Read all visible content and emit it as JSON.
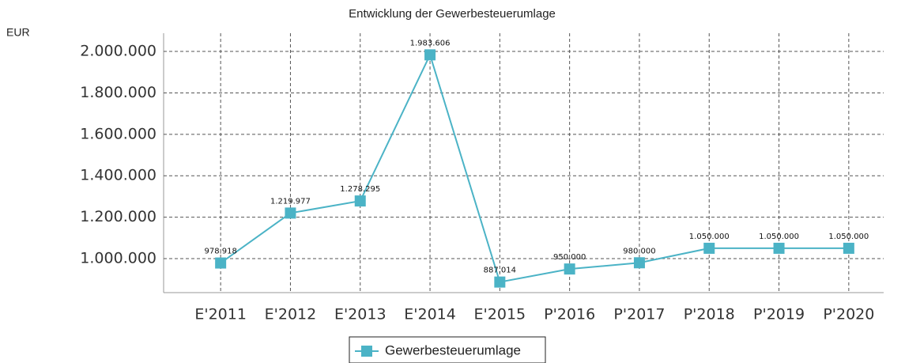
{
  "chart_data": {
    "type": "line",
    "title": "Entwicklung der Gewerbesteuerumlage",
    "y_label": "EUR",
    "categories": [
      "E'2011",
      "E'2012",
      "E'2013",
      "E'2014",
      "E'2015",
      "P'2016",
      "P'2017",
      "P'2018",
      "P'2019",
      "P'2020"
    ],
    "series": [
      {
        "name": "Gewerbesteuerumlage",
        "color": "#4bb3c6",
        "values": [
          978918,
          1219977,
          1278295,
          1983606,
          887014,
          950000,
          980000,
          1050000,
          1050000,
          1050000
        ],
        "value_labels": [
          "978.918",
          "1.219.977",
          "1.278.295",
          "1.983.606",
          "887.014",
          "950.000",
          "980.000",
          "1.050.000",
          "1.050.000",
          "1.050.000"
        ]
      }
    ],
    "ylim": [
      836000,
      2088000
    ],
    "yticks": [
      {
        "value": 1000000,
        "label": "1.000.000"
      },
      {
        "value": 1200000,
        "label": "1.200.000"
      },
      {
        "value": 1400000,
        "label": "1.400.000"
      },
      {
        "value": 1600000,
        "label": "1.600.000"
      },
      {
        "value": 1800000,
        "label": "1.800.000"
      },
      {
        "value": 2000000,
        "label": "2.000.000"
      }
    ],
    "grid": true,
    "legend": "bottom"
  }
}
